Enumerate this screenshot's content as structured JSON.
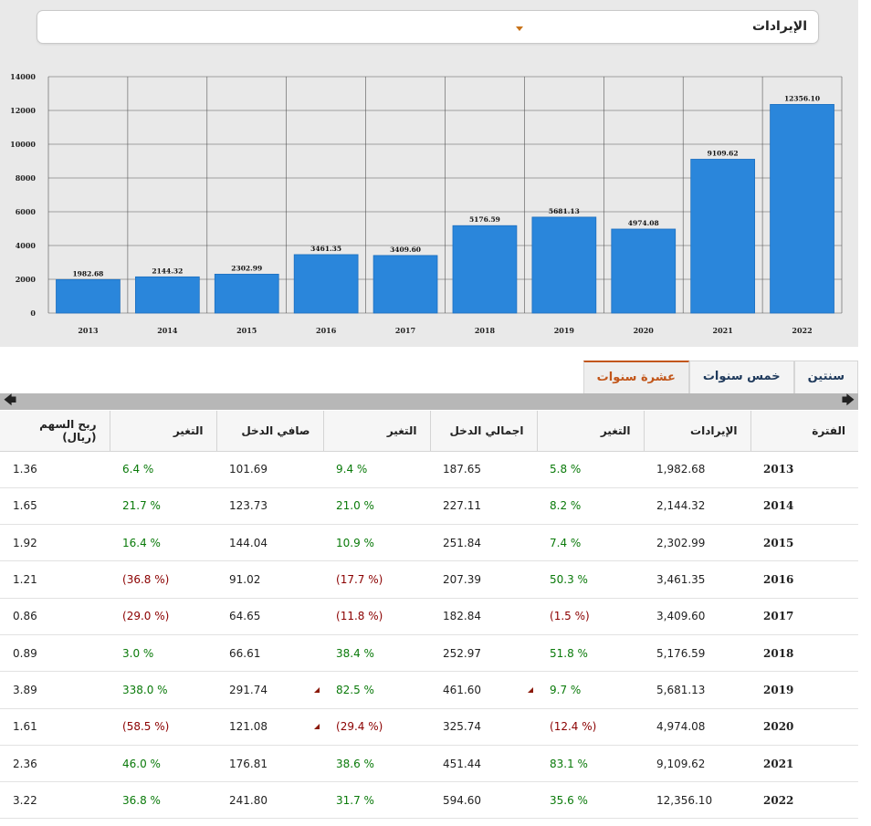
{
  "selector": {
    "selected": "الإيرادات"
  },
  "chart_data": {
    "type": "bar",
    "categories": [
      "2013",
      "2014",
      "2015",
      "2016",
      "2017",
      "2018",
      "2019",
      "2020",
      "2021",
      "2022"
    ],
    "values": [
      1982.68,
      2144.32,
      2302.99,
      3461.35,
      3409.6,
      5176.59,
      5681.13,
      4974.08,
      9109.62,
      12356.1
    ],
    "value_labels": [
      "1982.68",
      "2144.32",
      "2302.99",
      "3461.35",
      "3409.60",
      "5176.59",
      "5681.13",
      "4974.08",
      "9109.62",
      "12356.10"
    ],
    "yticks": [
      "0",
      "2000",
      "4000",
      "6000",
      "8000",
      "10000",
      "12000",
      "14000"
    ],
    "ylim": [
      0,
      14000
    ],
    "grid": true,
    "bar_color": "#2a86db"
  },
  "tabs": [
    {
      "label": "سنتين",
      "active": false
    },
    {
      "label": "خمس سنوات",
      "active": false
    },
    {
      "label": "عشرة سنوات",
      "active": true
    }
  ],
  "scroll": {
    "left_arrow": "🡄",
    "right_arrow": "🡆"
  },
  "table": {
    "headers": [
      "الفترة",
      "الإيرادات",
      "التغير",
      "اجمالي الدخل",
      "التغير",
      "صافي الدخل",
      "التغير",
      "ربح السهم (ريال)"
    ],
    "rows": [
      {
        "period": "2013",
        "revenue": "1,982.68",
        "chg1": "% 5.8",
        "chg1_neg": false,
        "gross": "187.65",
        "chg2": "% 9.4",
        "chg2_neg": false,
        "net": "101.69",
        "chg3": "% 6.4",
        "chg3_neg": false,
        "eps": "1.36"
      },
      {
        "period": "2014",
        "revenue": "2,144.32",
        "chg1": "% 8.2",
        "chg1_neg": false,
        "gross": "227.11",
        "chg2": "% 21.0",
        "chg2_neg": false,
        "net": "123.73",
        "chg3": "% 21.7",
        "chg3_neg": false,
        "eps": "1.65"
      },
      {
        "period": "2015",
        "revenue": "2,302.99",
        "chg1": "% 7.4",
        "chg1_neg": false,
        "gross": "251.84",
        "chg2": "% 10.9",
        "chg2_neg": false,
        "net": "144.04",
        "chg3": "% 16.4",
        "chg3_neg": false,
        "eps": "1.92"
      },
      {
        "period": "2016",
        "revenue": "3,461.35",
        "chg1": "% 50.3",
        "chg1_neg": false,
        "gross": "207.39",
        "chg2": "(% 17.7)",
        "chg2_neg": true,
        "net": "91.02",
        "chg3": "(% 36.8)",
        "chg3_neg": true,
        "eps": "1.21"
      },
      {
        "period": "2017",
        "revenue": "3,409.60",
        "chg1": "(% 1.5)",
        "chg1_neg": true,
        "gross": "182.84",
        "chg2": "(% 11.8)",
        "chg2_neg": true,
        "net": "64.65",
        "chg3": "(% 29.0)",
        "chg3_neg": true,
        "eps": "0.86"
      },
      {
        "period": "2018",
        "revenue": "5,176.59",
        "chg1": "% 51.8",
        "chg1_neg": false,
        "gross": "252.97",
        "chg2": "% 38.4",
        "chg2_neg": false,
        "net": "66.61",
        "chg3": "% 3.0",
        "chg3_neg": false,
        "eps": "0.89"
      },
      {
        "period": "2019",
        "revenue": "5,681.13",
        "chg1": "% 9.7",
        "chg1_neg": false,
        "gross": "461.60",
        "gross_flag": true,
        "chg2": "% 82.5",
        "chg2_neg": false,
        "net": "291.74",
        "net_flag": true,
        "chg3": "% 338.0",
        "chg3_neg": false,
        "eps": "3.89"
      },
      {
        "period": "2020",
        "revenue": "4,974.08",
        "chg1": "(% 12.4)",
        "chg1_neg": true,
        "gross": "325.74",
        "chg2": "(% 29.4)",
        "chg2_neg": true,
        "net": "121.08",
        "net_flag": true,
        "chg3": "(% 58.5)",
        "chg3_neg": true,
        "eps": "1.61"
      },
      {
        "period": "2021",
        "revenue": "9,109.62",
        "chg1": "% 83.1",
        "chg1_neg": false,
        "gross": "451.44",
        "chg2": "% 38.6",
        "chg2_neg": false,
        "net": "176.81",
        "chg3": "% 46.0",
        "chg3_neg": false,
        "eps": "2.36"
      },
      {
        "period": "2022",
        "revenue": "12,356.10",
        "chg1": "% 35.6",
        "chg1_neg": false,
        "gross": "594.60",
        "chg2": "% 31.7",
        "chg2_neg": false,
        "net": "241.80",
        "chg3": "% 36.8",
        "chg3_neg": false,
        "eps": "3.22"
      }
    ]
  }
}
